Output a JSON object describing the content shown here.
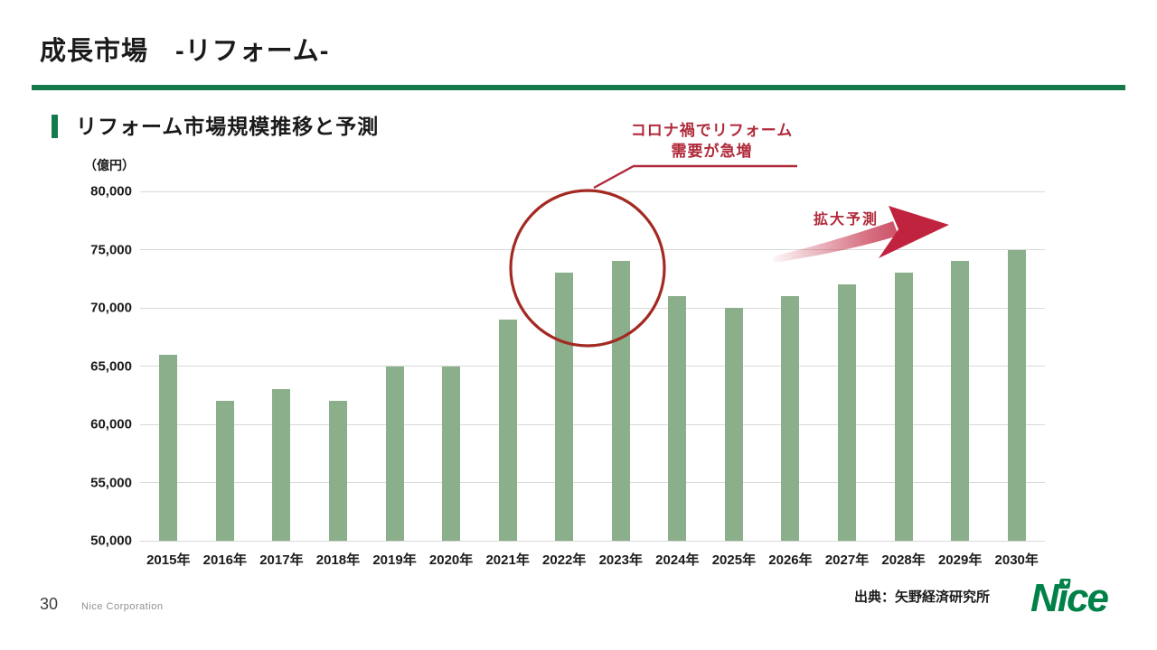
{
  "header": {
    "title": "成長市場　-リフォーム-"
  },
  "section": {
    "title": "リフォーム市場規模推移と予測"
  },
  "chart_data": {
    "type": "bar",
    "title": "リフォーム市場規模推移と予測",
    "unit_label": "（億円）",
    "xlabel": "",
    "ylabel": "（億円）",
    "categories": [
      "2015年",
      "2016年",
      "2017年",
      "2018年",
      "2019年",
      "2020年",
      "2021年",
      "2022年",
      "2023年",
      "2024年",
      "2025年",
      "2026年",
      "2027年",
      "2028年",
      "2029年",
      "2030年"
    ],
    "values": [
      66000,
      62000,
      63000,
      62000,
      65000,
      65000,
      69000,
      73000,
      74000,
      71000,
      70000,
      71000,
      72000,
      73000,
      74000,
      75000
    ],
    "ylim": [
      50000,
      80000
    ],
    "ytick_values": [
      50000,
      55000,
      60000,
      65000,
      70000,
      75000,
      80000
    ],
    "ytick_labels": [
      "50,000",
      "55,000",
      "60,000",
      "65,000",
      "70,000",
      "75,000",
      "80,000"
    ],
    "grid": true,
    "legend": false
  },
  "annotations": {
    "callout_line1": "コロナ禍でリフォーム",
    "callout_line2": "需要が急増",
    "expand_label": "拡大予測"
  },
  "footer": {
    "page_number": "30",
    "company": "Nice Corporation",
    "source": "出典：矢野経済研究所",
    "logo": {
      "n": "N",
      "i": "ı",
      "ce": "ce",
      "heart": "♥"
    }
  },
  "colors": {
    "accent_green": "#15794B",
    "bar_green": "#8CAF8B",
    "logo_green": "#008148",
    "callout_red": "#B02A3A",
    "circle_red": "#A32A22",
    "arrow_red": "#C0233E",
    "grid_gray": "#D9D9D9",
    "text_dark": "#1A1A1A",
    "text_mid": "#3F3F3F",
    "text_light": "#8F8F8F"
  }
}
